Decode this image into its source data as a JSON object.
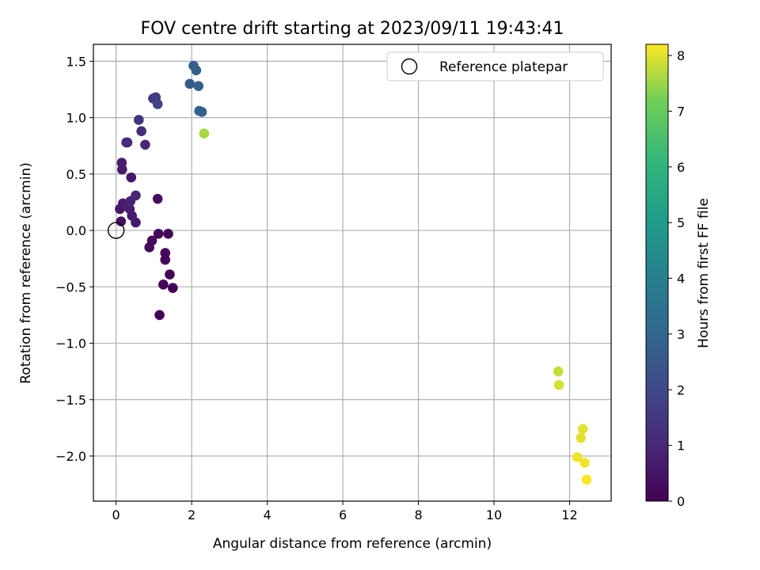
{
  "chart_data": {
    "type": "scatter",
    "title": "FOV centre drift starting at 2023/09/11 19:43:41",
    "xlabel": "Angular distance from reference (arcmin)",
    "ylabel": "Rotation from reference (arcmin)",
    "xlim": [
      -0.6,
      13.1
    ],
    "ylim": [
      -2.4,
      1.65
    ],
    "xticks": [
      0,
      2,
      4,
      6,
      8,
      10,
      12
    ],
    "yticks": [
      -2.0,
      -1.5,
      -1.0,
      -0.5,
      0.0,
      0.5,
      1.0,
      1.5
    ],
    "ytick_labels": [
      "−2.0",
      "−1.5",
      "−1.0",
      "−0.5",
      "0.0",
      "0.5",
      "1.0",
      "1.5"
    ],
    "grid": true,
    "legend": {
      "entries": [
        "Reference platepar"
      ],
      "placement": "top-right"
    },
    "colorbar": {
      "label": "Hours from first FF file",
      "range": [
        0,
        8.2
      ],
      "ticks": [
        0,
        1,
        2,
        3,
        4,
        5,
        6,
        7,
        8
      ],
      "colormap": "viridis"
    },
    "reference_point": {
      "x": 0,
      "y": 0
    },
    "points": [
      {
        "x": 1.15,
        "y": -0.75,
        "hours": 0.05
      },
      {
        "x": 1.25,
        "y": -0.48,
        "hours": 0.08
      },
      {
        "x": 1.5,
        "y": -0.51,
        "hours": 0.05
      },
      {
        "x": 1.42,
        "y": -0.39,
        "hours": 0.08
      },
      {
        "x": 1.3,
        "y": -0.26,
        "hours": 0.1
      },
      {
        "x": 1.3,
        "y": -0.2,
        "hours": 0.1
      },
      {
        "x": 1.38,
        "y": -0.03,
        "hours": 0.12
      },
      {
        "x": 1.12,
        "y": -0.03,
        "hours": 0.15
      },
      {
        "x": 0.95,
        "y": -0.09,
        "hours": 0.2
      },
      {
        "x": 0.88,
        "y": -0.15,
        "hours": 0.25
      },
      {
        "x": 1.1,
        "y": 0.28,
        "hours": 0.3
      },
      {
        "x": 0.13,
        "y": 0.08,
        "hours": 0.4
      },
      {
        "x": 0.1,
        "y": 0.19,
        "hours": 0.55
      },
      {
        "x": 0.18,
        "y": 0.24,
        "hours": 0.7
      },
      {
        "x": 0.28,
        "y": 0.22,
        "hours": 0.8
      },
      {
        "x": 0.36,
        "y": 0.19,
        "hours": 0.75
      },
      {
        "x": 0.42,
        "y": 0.13,
        "hours": 0.7
      },
      {
        "x": 0.52,
        "y": 0.07,
        "hours": 0.65
      },
      {
        "x": 0.38,
        "y": 0.26,
        "hours": 0.9
      },
      {
        "x": 0.52,
        "y": 0.31,
        "hours": 1.0
      },
      {
        "x": 0.4,
        "y": 0.47,
        "hours": 0.6
      },
      {
        "x": 0.16,
        "y": 0.54,
        "hours": 0.65
      },
      {
        "x": 0.15,
        "y": 0.6,
        "hours": 0.7
      },
      {
        "x": 0.3,
        "y": 0.78,
        "hours": 1.2
      },
      {
        "x": 0.27,
        "y": 0.78,
        "hours": 1.1
      },
      {
        "x": 0.77,
        "y": 0.76,
        "hours": 1.0
      },
      {
        "x": 0.67,
        "y": 0.88,
        "hours": 1.2
      },
      {
        "x": 0.6,
        "y": 0.98,
        "hours": 1.4
      },
      {
        "x": 1.05,
        "y": 1.18,
        "hours": 1.6
      },
      {
        "x": 0.98,
        "y": 1.17,
        "hours": 1.6
      },
      {
        "x": 1.1,
        "y": 1.12,
        "hours": 1.8
      },
      {
        "x": 1.95,
        "y": 1.3,
        "hours": 2.6
      },
      {
        "x": 2.05,
        "y": 1.46,
        "hours": 2.7
      },
      {
        "x": 2.12,
        "y": 1.42,
        "hours": 2.8
      },
      {
        "x": 2.18,
        "y": 1.28,
        "hours": 2.7
      },
      {
        "x": 2.2,
        "y": 1.06,
        "hours": 2.9
      },
      {
        "x": 2.27,
        "y": 1.05,
        "hours": 2.9
      },
      {
        "x": 2.33,
        "y": 0.86,
        "hours": 7.6
      },
      {
        "x": 11.7,
        "y": -1.25,
        "hours": 7.8
      },
      {
        "x": 11.72,
        "y": -1.37,
        "hours": 7.9
      },
      {
        "x": 12.35,
        "y": -1.76,
        "hours": 8.0
      },
      {
        "x": 12.3,
        "y": -1.84,
        "hours": 8.0
      },
      {
        "x": 12.2,
        "y": -2.01,
        "hours": 8.1
      },
      {
        "x": 12.4,
        "y": -2.06,
        "hours": 8.1
      },
      {
        "x": 12.45,
        "y": -2.21,
        "hours": 8.2
      }
    ]
  }
}
